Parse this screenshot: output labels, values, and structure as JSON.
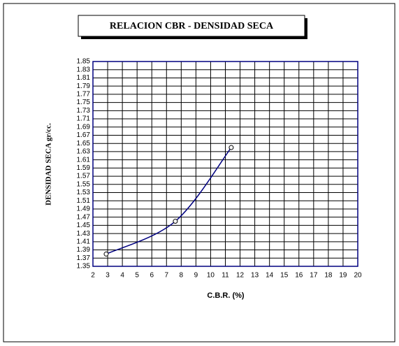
{
  "chart_data": {
    "type": "line",
    "title": "RELACION CBR - DENSIDAD SECA",
    "x_label": "C.B.R. (%)",
    "y_label": "DENSIDAD SECA gr/cc.",
    "x": [
      2.9,
      7.6,
      11.4
    ],
    "series": [
      {
        "color": "#000080",
        "values": [
          1.38,
          1.46,
          1.64
        ]
      }
    ],
    "xlim": [
      2,
      20
    ],
    "xticks": [
      2,
      3,
      4,
      5,
      6,
      7,
      8,
      9,
      10,
      11,
      12,
      13,
      14,
      15,
      16,
      17,
      18,
      19,
      20
    ],
    "ylim": [
      1.35,
      1.85
    ],
    "yticks": [
      1.35,
      1.37,
      1.39,
      1.41,
      1.43,
      1.45,
      1.47,
      1.49,
      1.51,
      1.53,
      1.55,
      1.57,
      1.59,
      1.61,
      1.63,
      1.65,
      1.67,
      1.69,
      1.71,
      1.73,
      1.75,
      1.77,
      1.79,
      1.81,
      1.83,
      1.85
    ],
    "grid": true
  }
}
